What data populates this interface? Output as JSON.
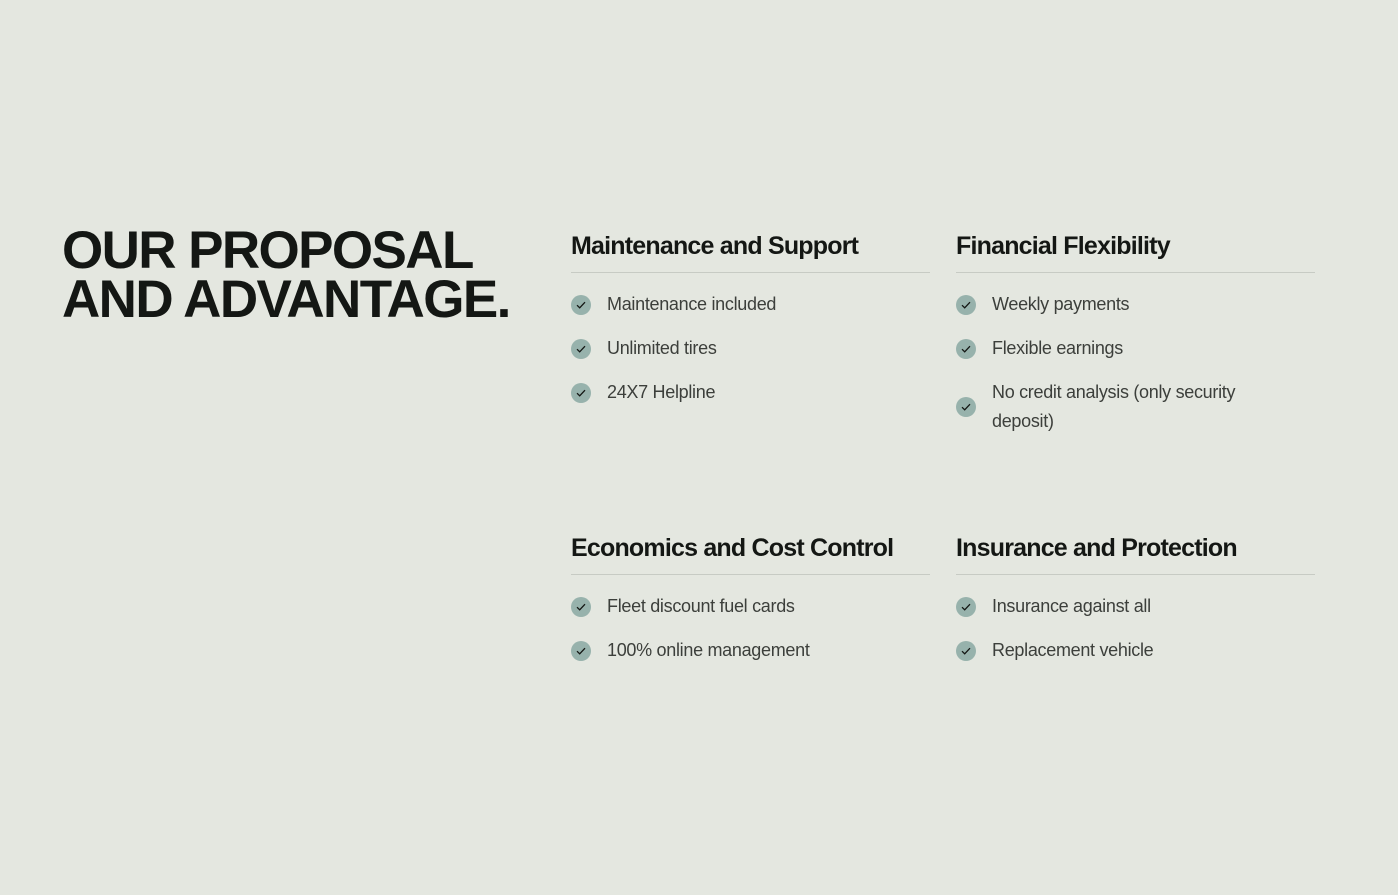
{
  "headline": {
    "line1": "OUR PROPOSAL",
    "line2": "AND ADVANTAGE."
  },
  "icon_name": "check-circle-icon",
  "colors": {
    "background": "#e4e7e0",
    "heading": "#141714",
    "body_text": "#3c3f3b",
    "check_circle": "#97b2ac",
    "divider": "#c7cbc4"
  },
  "cards": [
    {
      "title": "Maintenance and Support",
      "items": [
        "Maintenance included",
        "Unlimited tires",
        "24X7 Helpline"
      ]
    },
    {
      "title": "Financial Flexibility",
      "items": [
        "Weekly payments",
        "Flexible earnings",
        "No credit analysis (only security deposit)"
      ]
    },
    {
      "title": "Economics and Cost Control",
      "items": [
        "Fleet discount fuel cards",
        "100% online management"
      ]
    },
    {
      "title": "Insurance and Protection",
      "items": [
        "Insurance against all",
        "Replacement vehicle"
      ]
    }
  ]
}
